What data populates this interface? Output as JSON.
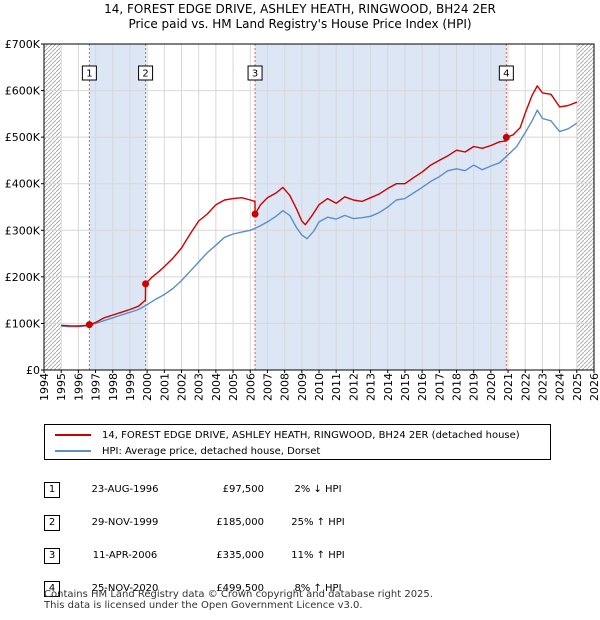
{
  "title_line1": "14, FOREST EDGE DRIVE, ASHLEY HEATH, RINGWOOD, BH24 2ER",
  "title_line2": "Price paid vs. HM Land Registry's House Price Index (HPI)",
  "colors": {
    "red": "#cc0000",
    "blue": "#5b8fc9",
    "shade": "#dde6f4",
    "grid": "#d8d8d8",
    "hatch": "#b0b0b0",
    "event_line": "#e06060"
  },
  "legend": {
    "property": "14, FOREST EDGE DRIVE, ASHLEY HEATH, RINGWOOD, BH24 2ER (detached house)",
    "hpi": "HPI: Average price, detached house, Dorset"
  },
  "transactions": [
    {
      "num": "1",
      "date": "23-AUG-1996",
      "price": "£97,500",
      "hpi": "2% ↓ HPI"
    },
    {
      "num": "2",
      "date": "29-NOV-1999",
      "price": "£185,000",
      "hpi": "25% ↑ HPI"
    },
    {
      "num": "3",
      "date": "11-APR-2006",
      "price": "£335,000",
      "hpi": "11% ↑ HPI"
    },
    {
      "num": "4",
      "date": "25-NOV-2020",
      "price": "£499,500",
      "hpi": "8% ↑ HPI"
    }
  ],
  "footer": {
    "line1": "Contains HM Land Registry data © Crown copyright and database right 2025.",
    "line2": "This data is licensed under the Open Government Licence v3.0."
  },
  "chart_data": {
    "type": "line",
    "title": "Price paid vs. HM Land Registry's House Price Index (HPI)",
    "xlabel": "",
    "ylabel": "",
    "xlim": [
      1994,
      2026
    ],
    "ylim": [
      0,
      700000
    ],
    "x_ticks": [
      1994,
      1995,
      1996,
      1997,
      1998,
      1999,
      2000,
      2001,
      2002,
      2003,
      2004,
      2005,
      2006,
      2007,
      2008,
      2009,
      2010,
      2011,
      2012,
      2013,
      2014,
      2015,
      2016,
      2017,
      2018,
      2019,
      2020,
      2021,
      2022,
      2023,
      2024,
      2025,
      2026
    ],
    "y_ticks": [
      0,
      100000,
      200000,
      300000,
      400000,
      500000,
      600000,
      700000
    ],
    "y_tick_labels": [
      "£0",
      "£100K",
      "£200K",
      "£300K",
      "£400K",
      "£500K",
      "£600K",
      "£700K"
    ],
    "data_start": 1995.0,
    "data_end": 2025.25,
    "shaded_periods": [
      [
        1996.64,
        1999.91
      ],
      [
        2006.28,
        2020.9
      ]
    ],
    "hatched_future_from": 2025.0,
    "sales": [
      {
        "label": "1",
        "x": 1996.64,
        "y": 97500
      },
      {
        "label": "2",
        "x": 1999.91,
        "y": 185000
      },
      {
        "label": "3",
        "x": 2006.28,
        "y": 335000
      },
      {
        "label": "4",
        "x": 2020.9,
        "y": 499500
      }
    ],
    "series": [
      {
        "name": "14, FOREST EDGE DRIVE, ASHLEY HEATH, RINGWOOD, BH24 2ER (detached house)",
        "color": "#cc0000",
        "x": [
          1995.0,
          1995.5,
          1996.0,
          1996.5,
          1996.64,
          1997.0,
          1997.5,
          1998.0,
          1998.5,
          1999.0,
          1999.5,
          1999.9,
          1999.91,
          2000.3,
          2000.7,
          2001.0,
          2001.5,
          2002.0,
          2002.5,
          2003.0,
          2003.5,
          2004.0,
          2004.5,
          2005.0,
          2005.5,
          2006.0,
          2006.27,
          2006.28,
          2006.6,
          2007.0,
          2007.5,
          2007.9,
          2008.3,
          2008.7,
          2009.0,
          2009.2,
          2009.6,
          2010.0,
          2010.5,
          2011.0,
          2011.5,
          2012.0,
          2012.5,
          2013.0,
          2013.5,
          2014.0,
          2014.5,
          2015.0,
          2015.5,
          2016.0,
          2016.5,
          2017.0,
          2017.5,
          2018.0,
          2018.5,
          2019.0,
          2019.5,
          2020.0,
          2020.5,
          2020.89,
          2020.9,
          2021.3,
          2021.7,
          2022.0,
          2022.4,
          2022.7,
          2023.0,
          2023.5,
          2024.0,
          2024.5,
          2025.0
        ],
        "values": [
          96000,
          95000,
          94500,
          96000,
          97500,
          102000,
          112000,
          118000,
          124000,
          130000,
          137000,
          150000,
          185000,
          200000,
          212000,
          222000,
          240000,
          262000,
          292000,
          320000,
          335000,
          355000,
          365000,
          368000,
          370000,
          365000,
          362000,
          335000,
          355000,
          370000,
          380000,
          392000,
          375000,
          345000,
          320000,
          312000,
          332000,
          355000,
          368000,
          358000,
          372000,
          365000,
          362000,
          370000,
          378000,
          390000,
          400000,
          400000,
          413000,
          425000,
          440000,
          450000,
          460000,
          472000,
          468000,
          480000,
          476000,
          482000,
          490000,
          492000,
          499500,
          505000,
          520000,
          552000,
          590000,
          610000,
          595000,
          592000,
          565000,
          568000,
          575000
        ]
      },
      {
        "name": "HPI: Average price, detached house, Dorset",
        "color": "#5b8fc9",
        "x": [
          1995.0,
          1995.5,
          1996.0,
          1996.5,
          1997.0,
          1997.5,
          1998.0,
          1998.5,
          1999.0,
          1999.5,
          2000.0,
          2000.5,
          2001.0,
          2001.5,
          2002.0,
          2002.5,
          2003.0,
          2003.5,
          2004.0,
          2004.5,
          2005.0,
          2005.5,
          2006.0,
          2006.5,
          2007.0,
          2007.5,
          2007.9,
          2008.3,
          2008.7,
          2009.0,
          2009.3,
          2009.7,
          2010.0,
          2010.5,
          2011.0,
          2011.5,
          2012.0,
          2012.5,
          2013.0,
          2013.5,
          2014.0,
          2014.5,
          2015.0,
          2015.5,
          2016.0,
          2016.5,
          2017.0,
          2017.5,
          2018.0,
          2018.5,
          2019.0,
          2019.5,
          2020.0,
          2020.5,
          2021.0,
          2021.5,
          2022.0,
          2022.4,
          2022.7,
          2023.0,
          2023.5,
          2024.0,
          2024.5,
          2025.0
        ],
        "values": [
          94000,
          93000,
          93500,
          95000,
          100000,
          106000,
          112000,
          118000,
          124000,
          130000,
          140000,
          152000,
          162000,
          175000,
          192000,
          212000,
          232000,
          252000,
          268000,
          285000,
          292000,
          296000,
          300000,
          308000,
          318000,
          330000,
          342000,
          332000,
          305000,
          290000,
          282000,
          298000,
          318000,
          328000,
          324000,
          332000,
          325000,
          327000,
          330000,
          338000,
          350000,
          365000,
          368000,
          380000,
          392000,
          405000,
          415000,
          428000,
          432000,
          428000,
          440000,
          430000,
          438000,
          445000,
          462000,
          480000,
          510000,
          535000,
          558000,
          540000,
          535000,
          512000,
          518000,
          530000
        ]
      }
    ]
  }
}
